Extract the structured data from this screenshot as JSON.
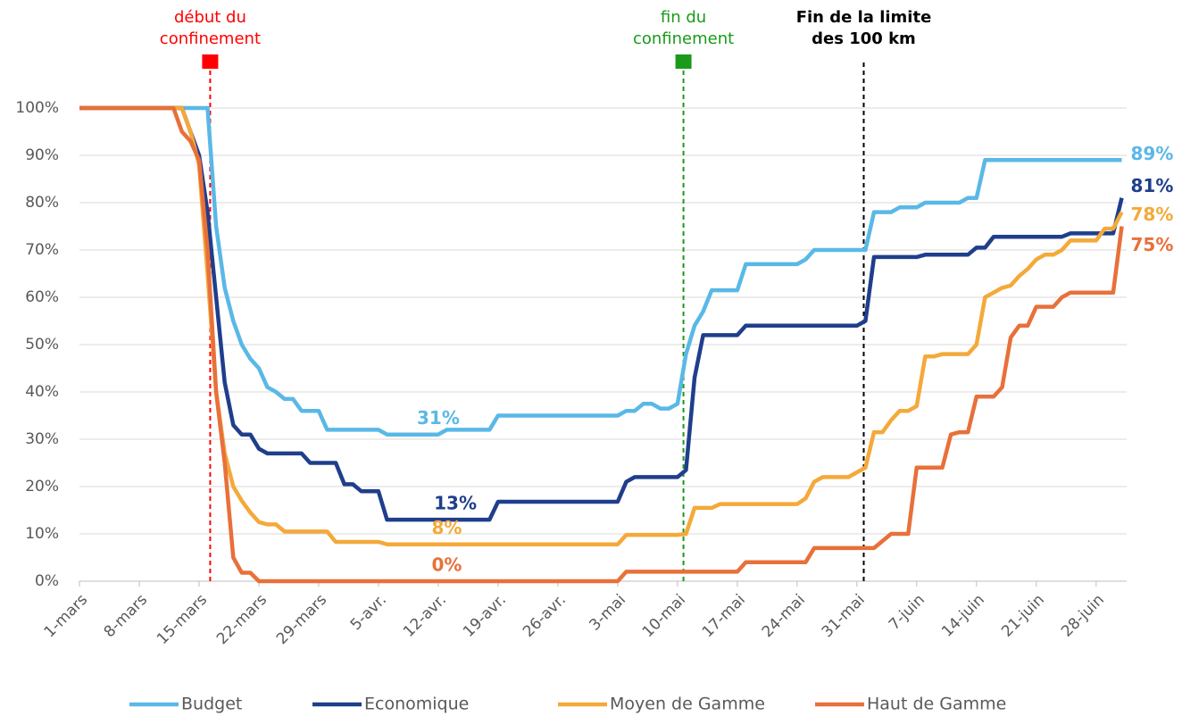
{
  "chart_data": {
    "type": "line",
    "categories": [
      "1-mars",
      null,
      null,
      null,
      null,
      null,
      null,
      "8-mars",
      null,
      null,
      null,
      null,
      null,
      null,
      "15-mars",
      null,
      null,
      null,
      null,
      null,
      null,
      "22-mars",
      null,
      null,
      null,
      null,
      null,
      null,
      "29-mars",
      null,
      null,
      null,
      null,
      null,
      null,
      "5-avr.",
      null,
      null,
      null,
      null,
      null,
      null,
      "12-avr.",
      null,
      null,
      null,
      null,
      null,
      null,
      "19-avr.",
      null,
      null,
      null,
      null,
      null,
      null,
      "26-avr.",
      null,
      null,
      null,
      null,
      null,
      null,
      "3-mai",
      null,
      null,
      null,
      null,
      null,
      null,
      "10-mai",
      null,
      null,
      null,
      null,
      null,
      null,
      "17-mai",
      null,
      null,
      null,
      null,
      null,
      null,
      "24-mai",
      null,
      null,
      null,
      null,
      null,
      null,
      "31-mai",
      null,
      null,
      null,
      null,
      null,
      null,
      "7-juin",
      null,
      null,
      null,
      null,
      null,
      null,
      "14-juin",
      null,
      null,
      null,
      null,
      null,
      null,
      "21-juin",
      null,
      null,
      null,
      null,
      null,
      null,
      "28-juin",
      null,
      null,
      null
    ],
    "series": [
      {
        "name": "Budget",
        "color": "#5ab8e6",
        "values": [
          100,
          100,
          100,
          100,
          100,
          100,
          100,
          100,
          100,
          100,
          100,
          100,
          100,
          100,
          100,
          100,
          75,
          62,
          55,
          50,
          47,
          45,
          41,
          40,
          38.5,
          38.5,
          36,
          36,
          36,
          32,
          32,
          32,
          32,
          32,
          32,
          32,
          31,
          31,
          31,
          31,
          31,
          31,
          31,
          32,
          32,
          32,
          32,
          32,
          32,
          35,
          35,
          35,
          35,
          35,
          35,
          35,
          35,
          35,
          35,
          35,
          35,
          35,
          35,
          35,
          36,
          36,
          37.5,
          37.5,
          36.5,
          36.5,
          37.5,
          48,
          54,
          57,
          61.5,
          61.5,
          61.5,
          61.5,
          67,
          67,
          67,
          67,
          67,
          67,
          67,
          68,
          70,
          70,
          70,
          70,
          70,
          70,
          70,
          78,
          78,
          78,
          79,
          79,
          79,
          80,
          80,
          80,
          80,
          80,
          81,
          81,
          89,
          89,
          89,
          89,
          89,
          89,
          89,
          89,
          89,
          89,
          89,
          89,
          89,
          89,
          89,
          89,
          89
        ]
      },
      {
        "name": "Economique",
        "color": "#1f3e8c",
        "values": [
          100,
          100,
          100,
          100,
          100,
          100,
          100,
          100,
          100,
          100,
          100,
          100,
          100,
          95,
          90,
          78,
          60,
          42,
          33,
          31,
          31,
          28,
          27,
          27,
          27,
          27,
          27,
          25,
          25,
          25,
          25,
          20.5,
          20.5,
          19,
          19,
          19,
          13,
          13,
          13,
          13,
          13,
          13,
          13,
          13,
          13,
          13,
          13,
          13,
          13,
          16.8,
          16.8,
          16.8,
          16.8,
          16.8,
          16.8,
          16.8,
          16.8,
          16.8,
          16.8,
          16.8,
          16.8,
          16.8,
          16.8,
          16.8,
          21,
          22,
          22,
          22,
          22,
          22,
          22,
          23.5,
          43,
          52,
          52,
          52,
          52,
          52,
          54,
          54,
          54,
          54,
          54,
          54,
          54,
          54,
          54,
          54,
          54,
          54,
          54,
          54,
          55,
          68.5,
          68.5,
          68.5,
          68.5,
          68.5,
          68.5,
          69,
          69,
          69,
          69,
          69,
          69,
          70.5,
          70.5,
          72.8,
          72.8,
          72.8,
          72.8,
          72.8,
          72.8,
          72.8,
          72.8,
          72.8,
          73.5,
          73.5,
          73.5,
          73.5,
          73.5,
          73.5,
          81
        ]
      },
      {
        "name": "Moyen de Gamme",
        "color": "#f4a93a",
        "values": [
          100,
          100,
          100,
          100,
          100,
          100,
          100,
          100,
          100,
          100,
          100,
          100,
          100,
          95,
          88,
          65,
          40,
          27,
          20,
          17,
          14.5,
          12.5,
          12,
          12,
          10.5,
          10.5,
          10.5,
          10.5,
          10.5,
          10.5,
          8.3,
          8.3,
          8.3,
          8.3,
          8.3,
          8.3,
          7.8,
          7.8,
          7.8,
          7.8,
          7.8,
          7.8,
          7.8,
          7.8,
          7.8,
          7.8,
          7.8,
          7.8,
          7.8,
          7.8,
          7.8,
          7.8,
          7.8,
          7.8,
          7.8,
          7.8,
          7.8,
          7.8,
          7.8,
          7.8,
          7.8,
          7.8,
          7.8,
          7.8,
          9.8,
          9.8,
          9.8,
          9.8,
          9.8,
          9.8,
          9.8,
          10,
          15.5,
          15.5,
          15.5,
          16.3,
          16.3,
          16.3,
          16.3,
          16.3,
          16.3,
          16.3,
          16.3,
          16.3,
          16.3,
          17.5,
          21,
          22,
          22,
          22,
          22,
          23,
          24,
          31.5,
          31.5,
          34,
          36,
          36,
          37,
          47.5,
          47.5,
          48,
          48,
          48,
          48,
          50,
          60,
          61,
          62,
          62.5,
          64.5,
          66,
          68,
          69,
          69,
          70,
          72,
          72,
          72,
          72,
          74.5,
          74.5,
          78
        ]
      },
      {
        "name": "Haut de Gamme",
        "color": "#e8703a",
        "values": [
          100,
          100,
          100,
          100,
          100,
          100,
          100,
          100,
          100,
          100,
          100,
          100,
          95,
          93,
          89,
          70,
          40,
          25,
          5,
          1.8,
          1.8,
          0,
          0,
          0,
          0,
          0,
          0,
          0,
          0,
          0,
          0,
          0,
          0,
          0,
          0,
          0,
          0,
          0,
          0,
          0,
          0,
          0,
          0,
          0,
          0,
          0,
          0,
          0,
          0,
          0,
          0,
          0,
          0,
          0,
          0,
          0,
          0,
          0,
          0,
          0,
          0,
          0,
          0,
          0,
          2,
          2,
          2,
          2,
          2,
          2,
          2,
          2,
          2,
          2,
          2,
          2,
          2,
          2,
          4,
          4,
          4,
          4,
          4,
          4,
          4,
          4,
          7,
          7,
          7,
          7,
          7,
          7,
          7,
          7,
          8.5,
          10,
          10,
          10,
          24,
          24,
          24,
          24,
          31,
          31.5,
          31.5,
          39,
          39,
          39,
          41,
          51.5,
          54,
          54,
          58,
          58,
          58,
          60,
          61,
          61,
          61,
          61,
          61,
          61,
          75
        ]
      }
    ],
    "ylim": [
      0,
      100
    ],
    "yticks": [
      {
        "value": 0,
        "label": "0%"
      },
      {
        "value": 10,
        "label": "10%"
      },
      {
        "value": 20,
        "label": "20%"
      },
      {
        "value": 30,
        "label": "30%"
      },
      {
        "value": 40,
        "label": "40%"
      },
      {
        "value": 50,
        "label": "50%"
      },
      {
        "value": 60,
        "label": "60%"
      },
      {
        "value": 70,
        "label": "70%"
      },
      {
        "value": 80,
        "label": "80%"
      },
      {
        "value": 90,
        "label": "90%"
      },
      {
        "value": 100,
        "label": "100%"
      }
    ],
    "grid": true,
    "legend": "bottom",
    "callouts": [
      {
        "series": 0,
        "index": 42,
        "label": "31%"
      },
      {
        "series": 1,
        "index": 44,
        "label": "13%"
      },
      {
        "series": 2,
        "index": 43,
        "label": "8%"
      },
      {
        "series": 3,
        "index": 43,
        "label": "0%"
      },
      {
        "series": 0,
        "index": 122,
        "label": "89%"
      },
      {
        "series": 1,
        "index": 122,
        "label": "81%"
      },
      {
        "series": 2,
        "index": 122,
        "label": "78%"
      },
      {
        "series": 3,
        "index": 122,
        "label": "75%"
      }
    ],
    "annotations": [
      {
        "lines": [
          "début du",
          "confinement"
        ],
        "x": 15.3,
        "color": "#ff0000",
        "marker": true,
        "bold": false
      },
      {
        "lines": [
          "fin du",
          "confinement"
        ],
        "x": 70.7,
        "color": "#1a9a1a",
        "marker": true,
        "bold": false
      },
      {
        "lines": [
          "Fin de la limite",
          "des 100 km"
        ],
        "x": 91.8,
        "color": "#000000",
        "marker": false,
        "bold": true
      }
    ]
  }
}
